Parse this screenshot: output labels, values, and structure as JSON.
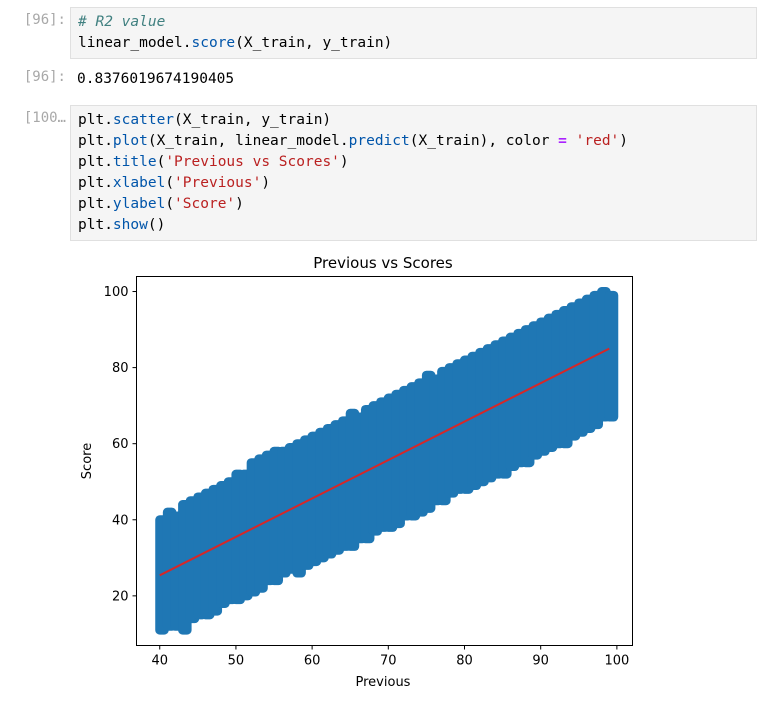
{
  "cell1": {
    "in_prompt": "[96]:",
    "out_prompt": "[96]:",
    "lines": [
      [
        {
          "t": "# R2 value",
          "c": "comment"
        }
      ],
      [
        {
          "t": "linear_model.",
          "c": "obj"
        },
        {
          "t": "score",
          "c": "func"
        },
        {
          "t": "(X_train, y_train)",
          "c": "obj"
        }
      ]
    ],
    "output": "0.8376019674190405"
  },
  "cell2": {
    "in_prompt": "[100…",
    "lines": [
      [
        {
          "t": "plt.",
          "c": "obj"
        },
        {
          "t": "scatter",
          "c": "func"
        },
        {
          "t": "(X_train, y_train)",
          "c": "obj"
        }
      ],
      [
        {
          "t": "plt.",
          "c": "obj"
        },
        {
          "t": "plot",
          "c": "func"
        },
        {
          "t": "(X_train, linear_model.",
          "c": "obj"
        },
        {
          "t": "predict",
          "c": "func"
        },
        {
          "t": "(X_train), color ",
          "c": "obj"
        },
        {
          "t": "=",
          "c": "op"
        },
        {
          "t": " ",
          "c": "obj"
        },
        {
          "t": "'red'",
          "c": "str"
        },
        {
          "t": ")",
          "c": "obj"
        }
      ],
      [
        {
          "t": "plt.",
          "c": "obj"
        },
        {
          "t": "title",
          "c": "func"
        },
        {
          "t": "(",
          "c": "obj"
        },
        {
          "t": "'Previous vs Scores'",
          "c": "str"
        },
        {
          "t": ")",
          "c": "obj"
        }
      ],
      [
        {
          "t": "plt.",
          "c": "obj"
        },
        {
          "t": "xlabel",
          "c": "func"
        },
        {
          "t": "(",
          "c": "obj"
        },
        {
          "t": "'Previous'",
          "c": "str"
        },
        {
          "t": ")",
          "c": "obj"
        }
      ],
      [
        {
          "t": "plt.",
          "c": "obj"
        },
        {
          "t": "ylabel",
          "c": "func"
        },
        {
          "t": "(",
          "c": "obj"
        },
        {
          "t": "'Score'",
          "c": "str"
        },
        {
          "t": ")",
          "c": "obj"
        }
      ],
      [
        {
          "t": "plt.",
          "c": "obj"
        },
        {
          "t": "show",
          "c": "func"
        },
        {
          "t": "()",
          "c": "obj"
        }
      ]
    ]
  },
  "chart_data": {
    "type": "scatter",
    "title": "Previous vs Scores",
    "xlabel": "Previous",
    "ylabel": "Score",
    "xlim": [
      36.95,
      102.05
    ],
    "ylim": [
      6.95,
      103.95
    ],
    "xticks": [
      40,
      50,
      60,
      70,
      80,
      90,
      100
    ],
    "yticks": [
      20,
      40,
      60,
      80,
      100
    ],
    "grid": false,
    "scatter_color": "#1f77b4",
    "line_color": "#d62728",
    "scatter_band": {
      "x_values": [
        40,
        41,
        42,
        43,
        44,
        45,
        46,
        47,
        48,
        49,
        50,
        51,
        52,
        53,
        54,
        55,
        56,
        57,
        58,
        59,
        60,
        61,
        62,
        63,
        64,
        65,
        66,
        67,
        68,
        69,
        70,
        71,
        72,
        73,
        74,
        75,
        76,
        77,
        78,
        79,
        80,
        81,
        82,
        83,
        84,
        85,
        86,
        87,
        88,
        89,
        90,
        91,
        92,
        93,
        94,
        95,
        96,
        97,
        98,
        99
      ],
      "y_min": [
        11,
        12,
        12,
        11,
        14,
        15,
        15,
        16,
        18,
        19,
        19,
        20,
        21,
        22,
        24,
        24,
        26,
        27,
        26,
        28,
        29,
        30,
        31,
        32,
        33,
        33,
        35,
        35,
        37,
        38,
        38,
        39,
        41,
        41,
        42,
        43,
        45,
        45,
        47,
        48,
        48,
        49,
        50,
        51,
        52,
        52,
        54,
        55,
        55,
        57,
        58,
        59,
        60,
        60,
        62,
        63,
        64,
        65,
        67,
        67
      ],
      "y_max": [
        40,
        42,
        41,
        44,
        45,
        46,
        47,
        48,
        49,
        50,
        52,
        52,
        55,
        56,
        57,
        58,
        58,
        59,
        60,
        61,
        62,
        63,
        64,
        65,
        66,
        68,
        67,
        69,
        70,
        71,
        72,
        73,
        74,
        75,
        76,
        78,
        77,
        79,
        80,
        81,
        82,
        83,
        84,
        85,
        86,
        87,
        88,
        89,
        90,
        91,
        92,
        93,
        94,
        95,
        96,
        97,
        98,
        99,
        100,
        99
      ]
    },
    "fit_line": {
      "x": [
        40,
        99
      ],
      "y": [
        25.4,
        85.0
      ]
    }
  }
}
